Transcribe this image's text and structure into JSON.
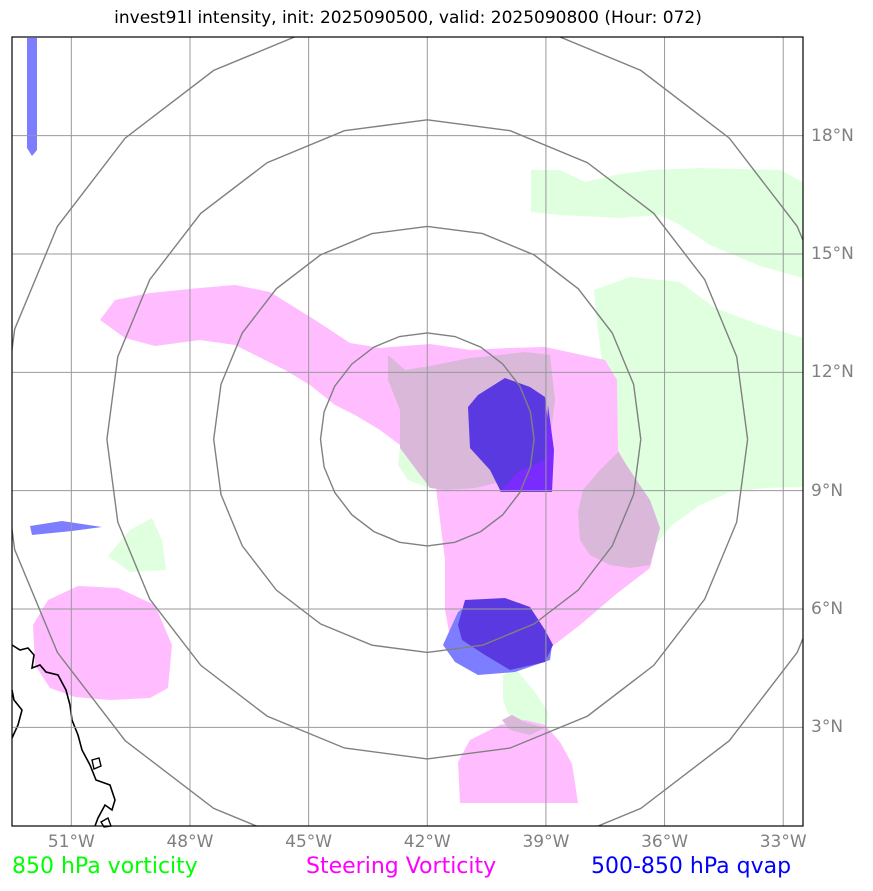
{
  "title": "invest91l intensity, init: 2025090500, valid: 2025090800 (Hour: 072)",
  "colors": {
    "vort850": "#00ff00",
    "steering": "#ff00ff",
    "qvap": "#0000ff",
    "grid": "#999999",
    "rings": "#808080",
    "coast": "#000000",
    "vort850_fill": "#dfffdf",
    "steering_fill": "#ffbcff",
    "overlap_fill": "#d9b8d9",
    "qvap_fill": "#7d7dff",
    "qvap_dark_fill": "#5a3ae0",
    "qvap_violet_fill": "#7a2cff"
  },
  "map": {
    "lon_range": [
      -52.5,
      -32.5
    ],
    "lat_range": [
      0.5,
      20.5
    ],
    "lon_ticks": [
      "51°W",
      "48°W",
      "45°W",
      "42°W",
      "39°W",
      "36°W",
      "33°W"
    ],
    "lat_ticks": [
      "3°N",
      "6°N",
      "9°N",
      "12°N",
      "15°N",
      "18°N"
    ],
    "center": {
      "lon": -42.0,
      "lat": 10.3
    },
    "range_rings_deg": [
      2.7,
      5.4,
      8.1,
      10.8
    ]
  },
  "legend": {
    "vort850": "850 hPa vorticity",
    "steering": "Steering Vorticity",
    "qvap": "500-850 hPa qvap"
  }
}
